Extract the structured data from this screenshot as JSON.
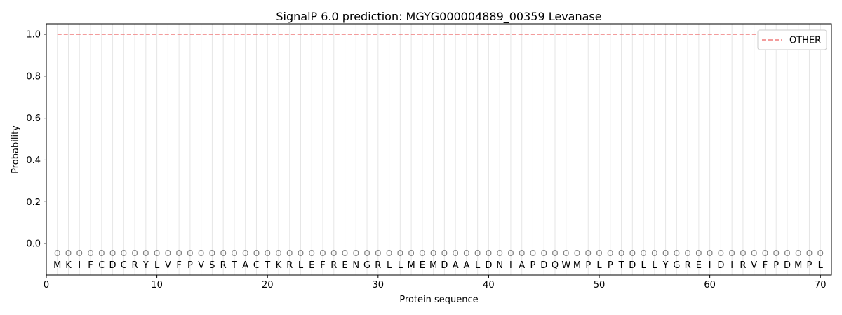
{
  "chart_data": {
    "type": "line",
    "title": "SignalP 6.0 prediction: MGYG000004889_00359 Levanase",
    "xlabel": "Protein sequence",
    "ylabel": "Probability",
    "xlim": [
      0,
      71
    ],
    "ylim": [
      -0.15,
      1.05
    ],
    "xticks": [
      0,
      10,
      20,
      30,
      40,
      50,
      60,
      70
    ],
    "yticks": [
      0.0,
      0.2,
      0.4,
      0.6,
      0.8,
      1.0
    ],
    "xtick_labels": [
      "0",
      "10",
      "20",
      "30",
      "40",
      "50",
      "60",
      "70"
    ],
    "ytick_labels": [
      "0.0",
      "0.2",
      "0.4",
      "0.6",
      "0.8",
      "1.0"
    ],
    "grid": "vertical lines at each residue",
    "legend": {
      "placement": "top-right",
      "entries": [
        "OTHER"
      ]
    },
    "series": [
      {
        "name": "OTHER",
        "color": "#ef7b7b",
        "style": "dashed",
        "x_start": 1,
        "x_end": 70,
        "value": 1.0
      }
    ],
    "sequence": [
      "M",
      "K",
      "I",
      "F",
      "C",
      "D",
      "C",
      "R",
      "Y",
      "L",
      "V",
      "F",
      "P",
      "V",
      "S",
      "R",
      "T",
      "A",
      "C",
      "T",
      "K",
      "R",
      "L",
      "E",
      "F",
      "R",
      "E",
      "N",
      "G",
      "R",
      "L",
      "L",
      "M",
      "E",
      "M",
      "D",
      "A",
      "A",
      "L",
      "D",
      "N",
      "I",
      "A",
      "P",
      "D",
      "Q",
      "W",
      "M",
      "P",
      "L",
      "P",
      "T",
      "D",
      "L",
      "L",
      "Y",
      "G",
      "R",
      "E",
      "I",
      "D",
      "I",
      "R",
      "V",
      "F",
      "P",
      "D",
      "M",
      "P",
      "L"
    ],
    "state_label": "O",
    "state_y": -0.045,
    "sequence_y": -0.1
  }
}
